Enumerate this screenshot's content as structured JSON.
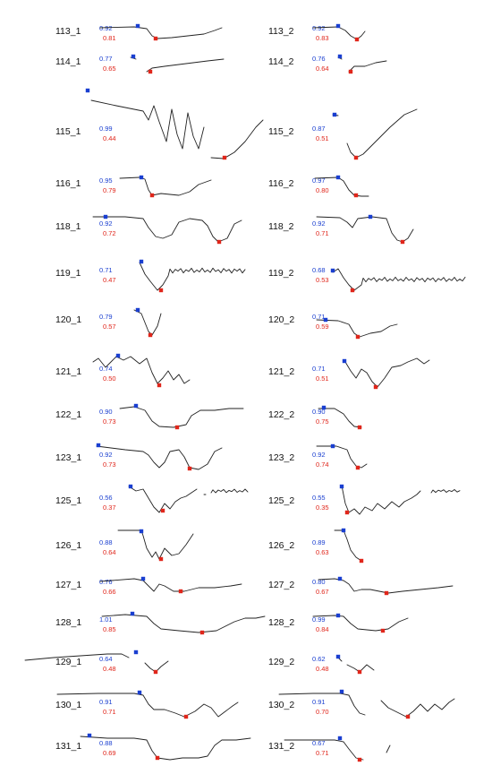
{
  "chart_data": {
    "type": "line",
    "title": "",
    "xlabel": "",
    "ylabel": "",
    "grid": false,
    "legend": "none",
    "colors": {
      "trace": "#222222",
      "upper_value": "#1a3fd0",
      "lower_value": "#e0261b",
      "start_marker": "#1a3fd0",
      "min_marker": "#e0261b"
    },
    "panels": [
      {
        "label": "113_1",
        "upper": "0.92",
        "lower": "0.81"
      },
      {
        "label": "113_2",
        "upper": "0.92",
        "lower": "0.83"
      },
      {
        "label": "114_1",
        "upper": "0.77",
        "lower": "0.65"
      },
      {
        "label": "114_2",
        "upper": "0.76",
        "lower": "0.64"
      },
      {
        "label": "115_1",
        "upper": "0.99",
        "lower": "0.44"
      },
      {
        "label": "115_2",
        "upper": "0.87",
        "lower": "0.51"
      },
      {
        "label": "116_1",
        "upper": "0.95",
        "lower": "0.79"
      },
      {
        "label": "116_2",
        "upper": "0.97",
        "lower": "0.80"
      },
      {
        "label": "118_1",
        "upper": "0.92",
        "lower": "0.72"
      },
      {
        "label": "118_2",
        "upper": "0.92",
        "lower": "0.71"
      },
      {
        "label": "119_1",
        "upper": "0.71",
        "lower": "0.47"
      },
      {
        "label": "119_2",
        "upper": "0.68",
        "lower": "0.53"
      },
      {
        "label": "120_1",
        "upper": "0.79",
        "lower": "0.57"
      },
      {
        "label": "120_2",
        "upper": "0.71",
        "lower": "0.59"
      },
      {
        "label": "121_1",
        "upper": "0.74",
        "lower": "0.50"
      },
      {
        "label": "121_2",
        "upper": "0.71",
        "lower": "0.51"
      },
      {
        "label": "122_1",
        "upper": "0.90",
        "lower": "0.73"
      },
      {
        "label": "122_2",
        "upper": "0.90",
        "lower": "0.75"
      },
      {
        "label": "123_1",
        "upper": "0.92",
        "lower": "0.73"
      },
      {
        "label": "123_2",
        "upper": "0.92",
        "lower": "0.74"
      },
      {
        "label": "125_1",
        "upper": "0.56",
        "lower": "0.37"
      },
      {
        "label": "125_2",
        "upper": "0.55",
        "lower": "0.35"
      },
      {
        "label": "126_1",
        "upper": "0.88",
        "lower": "0.64"
      },
      {
        "label": "126_2",
        "upper": "0.89",
        "lower": "0.63"
      },
      {
        "label": "127_1",
        "upper": "0.76",
        "lower": "0.66"
      },
      {
        "label": "127_2",
        "upper": "0.80",
        "lower": "0.67"
      },
      {
        "label": "128_1",
        "upper": "1.01",
        "lower": "0.85"
      },
      {
        "label": "128_2",
        "upper": "0.99",
        "lower": "0.84"
      },
      {
        "label": "129_1",
        "upper": "0.64",
        "lower": "0.48"
      },
      {
        "label": "129_2",
        "upper": "0.62",
        "lower": "0.48"
      },
      {
        "label": "130_1",
        "upper": "0.91",
        "lower": "0.71"
      },
      {
        "label": "130_2",
        "upper": "0.91",
        "lower": "0.70"
      },
      {
        "label": "131_1",
        "upper": "0.88",
        "lower": "0.69"
      },
      {
        "label": "131_2",
        "upper": "0.67",
        "lower": "0.71"
      }
    ]
  }
}
